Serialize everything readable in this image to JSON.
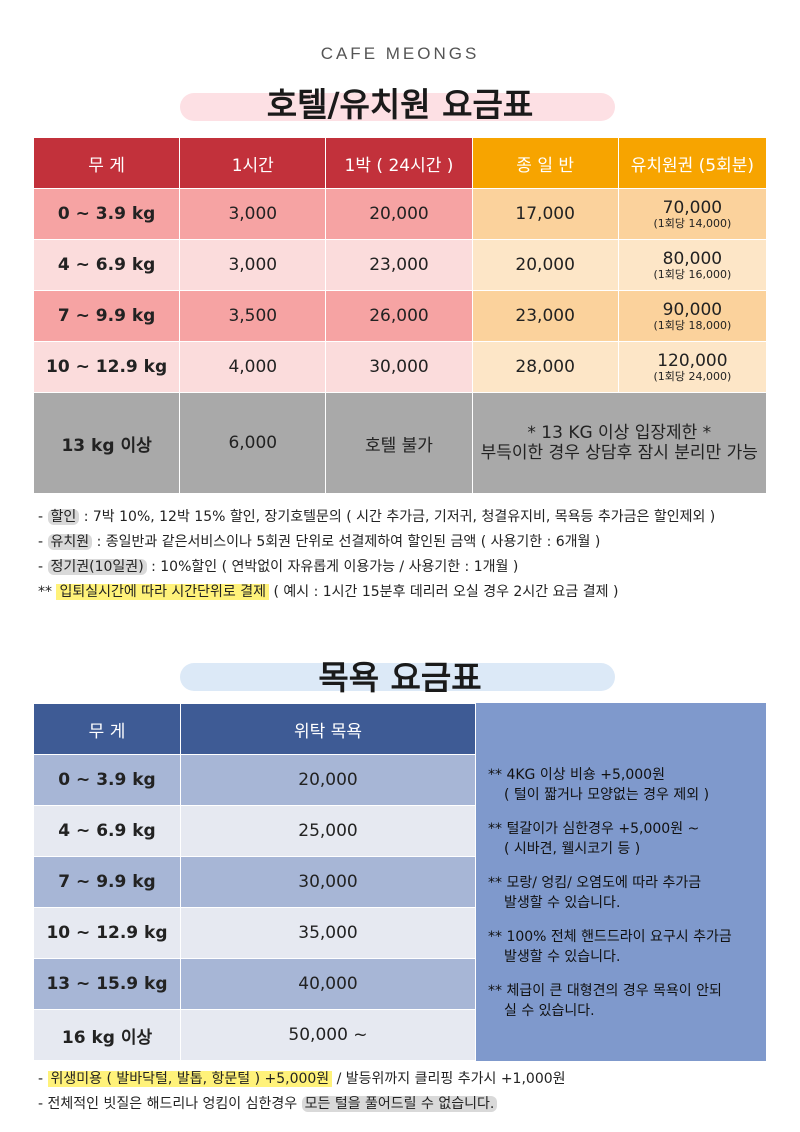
{
  "brand": "CAFE MEONGS",
  "hotel_title": "호텔/유치원 요금표",
  "hotel_headers": [
    "무 게",
    "1시간",
    "1박 ( 24시간 )",
    "종 일 반",
    "유치원권 (5회분)"
  ],
  "hotel_rows": [
    {
      "weight": "0 ~ 3.9 kg",
      "hour": "3,000",
      "night": "20,000",
      "day": "17,000",
      "pkg": "70,000",
      "pkg_sub": "(1회당 14,000)"
    },
    {
      "weight": "4 ~ 6.9 kg",
      "hour": "3,000",
      "night": "23,000",
      "day": "20,000",
      "pkg": "80,000",
      "pkg_sub": "(1회당 16,000)"
    },
    {
      "weight": "7 ~ 9.9 kg",
      "hour": "3,500",
      "night": "26,000",
      "day": "23,000",
      "pkg": "90,000",
      "pkg_sub": "(1회당 18,000)"
    },
    {
      "weight": "10 ~ 12.9 kg",
      "hour": "4,000",
      "night": "30,000",
      "day": "28,000",
      "pkg": "120,000",
      "pkg_sub": "(1회당 24,000)"
    }
  ],
  "hotel_last": {
    "weight": "13 kg 이상",
    "hour": "6,000",
    "night": "호텔 불가",
    "note1": "* 13 KG 이상 입장제한 *",
    "note2": "부득이한 경우 상담후 잠시 분리만 가능"
  },
  "notes1": [
    {
      "prefix": "- ",
      "label": "할인",
      "text": " : 7박 10%, 12박 15% 할인, 장기호텔문의 ( 시간 추가금, 기저귀, 청결유지비, 목욕등 추가금은 할인제외 )"
    },
    {
      "prefix": "- ",
      "label": "유치원",
      "text": " : 종일반과 같은서비스이나 5회권 단위로 선결제하여 할인된 금액 ( 사용기한 : 6개월 )"
    },
    {
      "prefix": "- ",
      "label": "정기권(10일권)",
      "text": " : 10%할인 ( 연박없이 자유롭게 이용가능 / 사용기한 : 1개월 )"
    },
    {
      "prefix": "** ",
      "label": "입퇴실시간에 따라 시간단위로 결제",
      "text": " ( 예시 : 1시간 15분후 데리러 오실 경우 2시간 요금 결제 )"
    }
  ],
  "grooming_title": "목욕 요금표",
  "grooming_headers": [
    "무 게",
    "위탁 목욕"
  ],
  "grooming_rows": [
    {
      "weight": "0 ~ 3.9 kg",
      "price": "20,000"
    },
    {
      "weight": "4 ~ 6.9 kg",
      "price": "25,000"
    },
    {
      "weight": "7 ~ 9.9 kg",
      "price": "30,000"
    },
    {
      "weight": "10 ~ 12.9 kg",
      "price": "35,000"
    },
    {
      "weight": "13 ~ 15.9 kg",
      "price": "40,000"
    },
    {
      "weight": "16 kg 이상",
      "price": "50,000 ~"
    }
  ],
  "grooming_notes": [
    {
      "l1": "** 4KG 이상 비숑 +5,000원",
      "l2": "( 털이 짧거나 모양없는 경우 제외 )"
    },
    {
      "l1": "** 털갈이가 심한경우 +5,000원 ~",
      "l2": "( 시바견, 웰시코기 등 )"
    },
    {
      "l1": "** 모랑/ 엉킴/ 오염도에 따라 추가금",
      "l2": "발생할 수 있습니다."
    },
    {
      "l1": "** 100% 전체 핸드드라이 요구시 추가금",
      "l2": "발생할 수 있습니다."
    },
    {
      "l1": "** 체급이 큰 대형견의 경우 목욕이 안되",
      "l2": "실 수 있습니다."
    }
  ],
  "notes2": [
    {
      "prefix": "- ",
      "label": "위생미용 ( 발바닥털, 발톱, 항문털 ) +5,000원",
      "text": "  /  발등위까지 클리핑 추가시 +1,000원"
    },
    {
      "prefix": "- ",
      "text": "전체적인 빗질은 해드리나 엉킴이 심한경우 ",
      "label": "모든 털을 풀어드릴 수 없습니다."
    }
  ],
  "colors": {
    "hotel_header_red": "#c2313b",
    "hotel_header_orange": "#f7a400",
    "grooming_header": "#3e5b95",
    "grooming_side": "#7f99cc",
    "title_pill_hotel": "#fde0e4",
    "title_pill_grooming": "#dce9f7"
  }
}
